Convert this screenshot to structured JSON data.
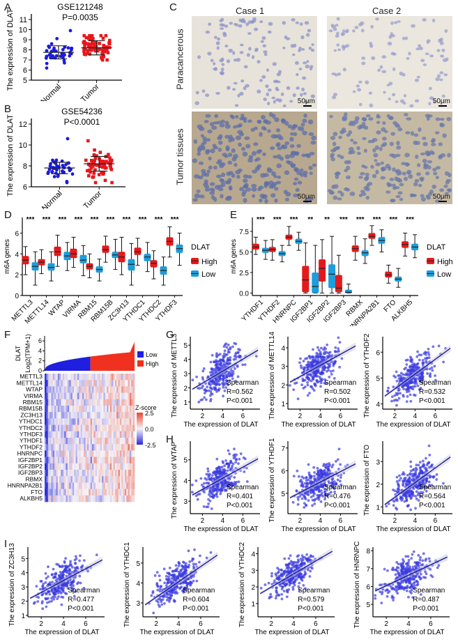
{
  "panels": {
    "A": {
      "label": "A"
    },
    "B": {
      "label": "B"
    },
    "C": {
      "label": "C"
    },
    "D": {
      "label": "D"
    },
    "E": {
      "label": "E"
    },
    "F": {
      "label": "F"
    },
    "G": {
      "label": "G"
    },
    "H": {
      "label": "H"
    },
    "I": {
      "label": "I"
    }
  },
  "colors": {
    "normal": "#1a1adf",
    "tumor": "#e8161b",
    "high": "#e31a1c",
    "low": "#1c9ddc",
    "scatter": "#3a3ae0",
    "line": "#1a1aa0",
    "heat_low": "#2b2bdc",
    "heat_mid": "#f5f2f6",
    "heat_high": "#e8462f"
  },
  "chart_data": [
    {
      "id": "A",
      "type": "scatter",
      "title": "GSE121248",
      "subtitle": "P=0.0035",
      "ylabel": "The expression of DLAT",
      "ylim": [
        5,
        11
      ],
      "yticks": [
        5,
        6,
        7,
        8,
        9,
        10,
        11
      ],
      "categories": [
        "Normal",
        "Tumor"
      ],
      "summary": [
        {
          "group": "Normal",
          "mean": 7.75,
          "sd": 0.65,
          "min": 6.2,
          "max": 9.9
        },
        {
          "group": "Tumor",
          "mean": 8.2,
          "sd": 0.7,
          "min": 7.0,
          "max": 9.4
        }
      ]
    },
    {
      "id": "B",
      "type": "scatter",
      "title": "GSE54236",
      "subtitle": "P<0.0001",
      "ylabel": "The expression of DLAT",
      "ylim": [
        6,
        12
      ],
      "yticks": [
        6,
        8,
        10,
        12
      ],
      "categories": [
        "Normal",
        "Tumor"
      ],
      "summary": [
        {
          "group": "Normal",
          "mean": 7.8,
          "sd": 0.55,
          "min": 6.4,
          "max": 10.6
        },
        {
          "group": "Tumor",
          "mean": 8.2,
          "sd": 0.7,
          "min": 6.4,
          "max": 10.4
        }
      ]
    },
    {
      "id": "D",
      "type": "box",
      "ylabel": "m6A genes",
      "ylim": [
        0,
        7.5
      ],
      "yticks": [
        0,
        2,
        4,
        6
      ],
      "legend_title": "DLAT",
      "legend": [
        "High",
        "Low"
      ],
      "categories": [
        "METTL3",
        "METTL14",
        "WTAP",
        "VIRMA",
        "RBM15",
        "RBM15B",
        "ZC3H13",
        "YTHDC1",
        "YTHDC2",
        "YTHDF3"
      ],
      "significance": [
        "***",
        "***",
        "***",
        "***",
        "***",
        "***",
        "***",
        "***",
        "***",
        "***"
      ],
      "series": [
        {
          "name": "High",
          "boxes": [
            [
              2.0,
              3.0,
              3.4,
              3.8,
              4.7
            ],
            [
              2.1,
              2.9,
              3.2,
              3.5,
              4.4
            ],
            [
              2.8,
              3.8,
              4.2,
              4.7,
              5.8
            ],
            [
              2.7,
              3.6,
              4.0,
              4.5,
              5.6
            ],
            [
              1.7,
              2.5,
              2.8,
              3.1,
              4.0
            ],
            [
              3.2,
              4.1,
              4.4,
              4.8,
              5.7
            ],
            [
              2.0,
              3.2,
              3.7,
              4.2,
              5.6
            ],
            [
              2.9,
              3.9,
              4.2,
              4.6,
              5.5
            ],
            [
              1.6,
              2.7,
              3.1,
              3.4,
              4.3
            ],
            [
              3.7,
              4.8,
              5.2,
              5.6,
              6.6
            ]
          ]
        },
        {
          "name": "Low",
          "boxes": [
            [
              1.0,
              2.4,
              2.8,
              3.2,
              4.2
            ],
            [
              1.4,
              2.4,
              2.7,
              3.1,
              4.2
            ],
            [
              2.4,
              3.4,
              3.8,
              4.2,
              5.1
            ],
            [
              1.9,
              3.1,
              3.4,
              3.9,
              4.8
            ],
            [
              1.4,
              2.2,
              2.5,
              2.8,
              3.5
            ],
            [
              2.5,
              3.6,
              3.9,
              4.2,
              5.4
            ],
            [
              1.0,
              2.4,
              3.0,
              3.5,
              5.0
            ],
            [
              2.3,
              3.3,
              3.7,
              4.0,
              5.1
            ],
            [
              1.0,
              2.0,
              2.4,
              2.8,
              3.7
            ],
            [
              2.9,
              4.1,
              4.5,
              4.9,
              6.0
            ]
          ]
        }
      ]
    },
    {
      "id": "E",
      "type": "box",
      "ylabel": "m6A genes",
      "ylim": [
        -0.3,
        9.2
      ],
      "yticks": [
        0.0,
        2.5,
        5.0,
        7.5
      ],
      "ytick_labels": [
        "0.0",
        "2.5",
        "5.0",
        "7.5"
      ],
      "legend_title": "DLAT",
      "legend": [
        "High",
        "Low"
      ],
      "categories": [
        "YTHDF1",
        "YTHDF2",
        "HNRNPC",
        "IGF2BP1",
        "IGF2BP2",
        "IGF2BP3",
        "RBMX",
        "HNRNPA2B1",
        "FTO",
        "ALKBH5"
      ],
      "significance": [
        "***",
        "***",
        "***",
        "**",
        "**",
        "***",
        "***",
        "***",
        "***",
        "***"
      ],
      "series": [
        {
          "name": "High",
          "boxes": [
            [
              4.7,
              5.3,
              5.6,
              6.0,
              6.8
            ],
            [
              4.0,
              5.0,
              5.3,
              5.6,
              6.5
            ],
            [
              5.8,
              6.5,
              6.8,
              7.1,
              8.1
            ],
            [
              0.0,
              0.1,
              1.6,
              3.3,
              6.1
            ],
            [
              0.0,
              1.4,
              3.0,
              4.1,
              6.5
            ],
            [
              0.0,
              0.1,
              0.6,
              2.2,
              4.6
            ],
            [
              4.0,
              5.0,
              5.4,
              5.8,
              6.9
            ],
            [
              5.8,
              6.6,
              6.9,
              7.3,
              8.2
            ],
            [
              1.2,
              1.9,
              2.2,
              2.6,
              3.4
            ],
            [
              4.5,
              5.5,
              5.9,
              6.3,
              7.3
            ]
          ]
        },
        {
          "name": "Low",
          "boxes": [
            [
              4.1,
              4.9,
              5.2,
              5.5,
              6.4
            ],
            [
              3.8,
              4.5,
              4.8,
              5.1,
              5.8
            ],
            [
              5.2,
              6.0,
              6.3,
              6.6,
              7.4
            ],
            [
              0.0,
              0.0,
              0.8,
              2.5,
              5.8
            ],
            [
              0.0,
              0.6,
              2.3,
              3.5,
              6.9
            ],
            [
              0.0,
              0.0,
              0.1,
              0.4,
              1.1
            ],
            [
              3.6,
              4.5,
              4.9,
              5.2,
              6.6
            ],
            [
              5.0,
              6.0,
              6.4,
              6.8,
              7.7
            ],
            [
              0.7,
              1.4,
              1.7,
              2.0,
              3.0
            ],
            [
              4.3,
              5.2,
              5.6,
              6.0,
              7.1
            ]
          ]
        }
      ]
    },
    {
      "id": "F",
      "type": "heatmap",
      "top_label": "DLAT",
      "top_ylabel": "Log2(TPM+1)",
      "top_yticks": [
        0,
        2,
        4,
        6
      ],
      "legend": [
        "Low",
        "High"
      ],
      "colorbar_title": "Z-score",
      "colorbar_ticks": [
        "2.5",
        "0.0",
        "-2.5"
      ],
      "rows": [
        "METTL3",
        "METTL14",
        "WTAP",
        "VIRMA",
        "RBM15",
        "RBM15B",
        "ZC3H13",
        "YTHDC1",
        "YTHDC2",
        "YTHDF3",
        "YTHDF1",
        "YTHDF2",
        "HNRNPC",
        "IGF2BP1",
        "IGF2BP2",
        "IGF2BP3",
        "RBMX",
        "HNRNPA2B1",
        "FTO",
        "ALKBH5"
      ]
    },
    {
      "id": "G1",
      "type": "scatter",
      "ylabel": "The expression of  METTL3",
      "xlabel": "The expression of DLAT",
      "xticks": [
        2,
        4,
        6
      ],
      "yticks": [
        1,
        2,
        3,
        4,
        5
      ],
      "xlim": [
        0.8,
        7.7
      ],
      "ylim": [
        0.5,
        5.6
      ],
      "fit": [
        [
          1,
          1.9
        ],
        [
          7.5,
          4.65
        ]
      ],
      "stat": "Spearman",
      "r": "R=0.562",
      "p": "P<0.001"
    },
    {
      "id": "G2",
      "type": "scatter",
      "ylabel": "The expression of  METTL14",
      "xlabel": "The expression of DLAT",
      "xticks": [
        2,
        4,
        6
      ],
      "yticks": [
        1,
        2,
        3,
        4
      ],
      "xlim": [
        0.8,
        7.7
      ],
      "ylim": [
        0.7,
        4.6
      ],
      "fit": [
        [
          1,
          2.15
        ],
        [
          7.5,
          4.1
        ]
      ],
      "stat": "Spearman",
      "r": "R=0.502",
      "p": "P<0.001"
    },
    {
      "id": "G3",
      "type": "scatter",
      "ylabel": "The expression of  YTHDF2",
      "xlabel": "The expression of DLAT",
      "xticks": [
        2,
        4,
        6
      ],
      "yticks": [
        4,
        5,
        6
      ],
      "xlim": [
        0.8,
        7.7
      ],
      "ylim": [
        3.8,
        6.6
      ],
      "fit": [
        [
          1,
          4.3
        ],
        [
          7.5,
          6.15
        ]
      ],
      "stat": "Spearman",
      "r": "R=0.532",
      "p": "P<0.001"
    },
    {
      "id": "H1",
      "type": "scatter",
      "ylabel": "The expression of  WTAP",
      "xlabel": "The expression of DLAT",
      "xticks": [
        2,
        4,
        6
      ],
      "yticks": [
        3,
        4,
        5
      ],
      "xlim": [
        0.8,
        7.7
      ],
      "ylim": [
        2.4,
        5.9
      ],
      "fit": [
        [
          1,
          3.3
        ],
        [
          7.5,
          5.05
        ]
      ],
      "stat": "Spearman",
      "r": "R=0.401",
      "p": "P<0.001"
    },
    {
      "id": "H2",
      "type": "scatter",
      "ylabel": "The expression of  YTHDF1",
      "xlabel": "The expression of DLAT",
      "xticks": [
        2,
        4,
        6
      ],
      "yticks": [
        5,
        6,
        7
      ],
      "xlim": [
        0.8,
        7.7
      ],
      "ylim": [
        4.1,
        7.3
      ],
      "fit": [
        [
          1,
          4.8
        ],
        [
          7.5,
          6.3
        ]
      ],
      "stat": "Spearman",
      "r": "R=0.476",
      "p": "P<0.001"
    },
    {
      "id": "H3",
      "type": "scatter",
      "ylabel": "The expression of  FTO",
      "xlabel": "The expression of DLAT",
      "xticks": [
        2,
        4,
        6
      ],
      "yticks": [
        1,
        2,
        3
      ],
      "xlim": [
        0.8,
        7.7
      ],
      "ylim": [
        0.7,
        3.9
      ],
      "fit": [
        [
          1,
          1.1
        ],
        [
          7.5,
          3.2
        ]
      ],
      "stat": "Spearman",
      "r": "R=0.564",
      "p": "P<0.001"
    },
    {
      "id": "I1",
      "type": "scatter",
      "ylabel": "The expression of  ZC3H13",
      "xlabel": "The expression of DLAT",
      "xticks": [
        2,
        4,
        6
      ],
      "yticks": [
        1,
        2,
        3,
        4,
        5
      ],
      "xlim": [
        0.8,
        7.7
      ],
      "ylim": [
        0.9,
        5.8
      ],
      "fit": [
        [
          1,
          2.2
        ],
        [
          7.5,
          4.9
        ]
      ],
      "stat": "Spearman",
      "r": "R=0.477",
      "p": "P<0.001"
    },
    {
      "id": "I2",
      "type": "scatter",
      "ylabel": "The expression of  YTHDC1",
      "xlabel": "The expression of DLAT",
      "xticks": [
        2,
        4,
        6
      ],
      "yticks": [
        3,
        4,
        5
      ],
      "xlim": [
        0.8,
        7.7
      ],
      "ylim": [
        2.3,
        5.8
      ],
      "fit": [
        [
          1,
          2.9
        ],
        [
          7.5,
          5.4
        ]
      ],
      "stat": "Spearman",
      "r": "R=0.604",
      "p": "P<0.001"
    },
    {
      "id": "I3",
      "type": "scatter",
      "ylabel": "The expression of  YTHDC2",
      "xlabel": "The expression of DLAT",
      "xticks": [
        2,
        4,
        6
      ],
      "yticks": [
        1,
        2,
        3,
        4
      ],
      "xlim": [
        0.8,
        7.7
      ],
      "ylim": [
        0.2,
        4.4
      ],
      "fit": [
        [
          1,
          1.6
        ],
        [
          7.5,
          4.15
        ]
      ],
      "stat": "Spearman",
      "r": "R=0.579",
      "p": "P<0.001"
    },
    {
      "id": "I4",
      "type": "scatter",
      "ylabel": "The expression of  HNRNPC",
      "xlabel": "The expression of DLAT",
      "xticks": [
        2,
        4,
        6
      ],
      "yticks": [
        5,
        6,
        7,
        8
      ],
      "xlim": [
        0.8,
        7.7
      ],
      "ylim": [
        4.3,
        8.2
      ],
      "fit": [
        [
          1,
          5.75
        ],
        [
          7.5,
          7.65
        ]
      ],
      "stat": "Spearman",
      "r": "R=0.487",
      "p": "P<0.001"
    }
  ],
  "ihc": {
    "columns": [
      "Case 1",
      "Case 2"
    ],
    "rows": [
      "Paracancerous",
      "Tumor tissues"
    ],
    "scale_bar": "50μm"
  }
}
